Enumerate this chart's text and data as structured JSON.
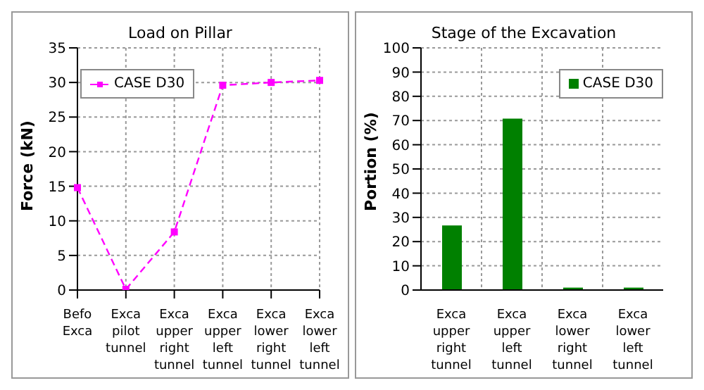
{
  "chart_data": [
    {
      "type": "line",
      "title": "Load on Pillar",
      "ylabel": "Force (kN)",
      "categories": [
        "Befo Exca",
        "Exca pilot tunnel",
        "Exca upper right tunnel",
        "Exca upper left tunnel",
        "Exca lower right tunnel",
        "Exca lower left tunnel"
      ],
      "series": [
        {
          "name": "CASE D30",
          "color": "#ff00ff",
          "values": [
            14.8,
            0.1,
            8.4,
            29.6,
            30.0,
            30.3
          ]
        }
      ],
      "ylim": [
        0,
        35
      ],
      "yticks": [
        0,
        5,
        10,
        15,
        20,
        25,
        30,
        35
      ],
      "grid": true,
      "legend": "top left",
      "marker": "square",
      "line_style": "dashed"
    },
    {
      "type": "bar",
      "title": "Stage of the Excavation",
      "ylabel": "Portion (%)",
      "categories": [
        "Exca upper right tunnel",
        "Exca upper left tunnel",
        "Exca lower right tunnel",
        "Exca lower left tunnel"
      ],
      "series": [
        {
          "name": "CASE D30",
          "color": "#008000",
          "values": [
            26.7,
            70.8,
            1.0,
            1.0
          ]
        }
      ],
      "ylim": [
        0,
        100
      ],
      "yticks": [
        0,
        10,
        20,
        30,
        40,
        50,
        60,
        70,
        80,
        90,
        100
      ],
      "grid": true,
      "legend": "top right"
    }
  ]
}
